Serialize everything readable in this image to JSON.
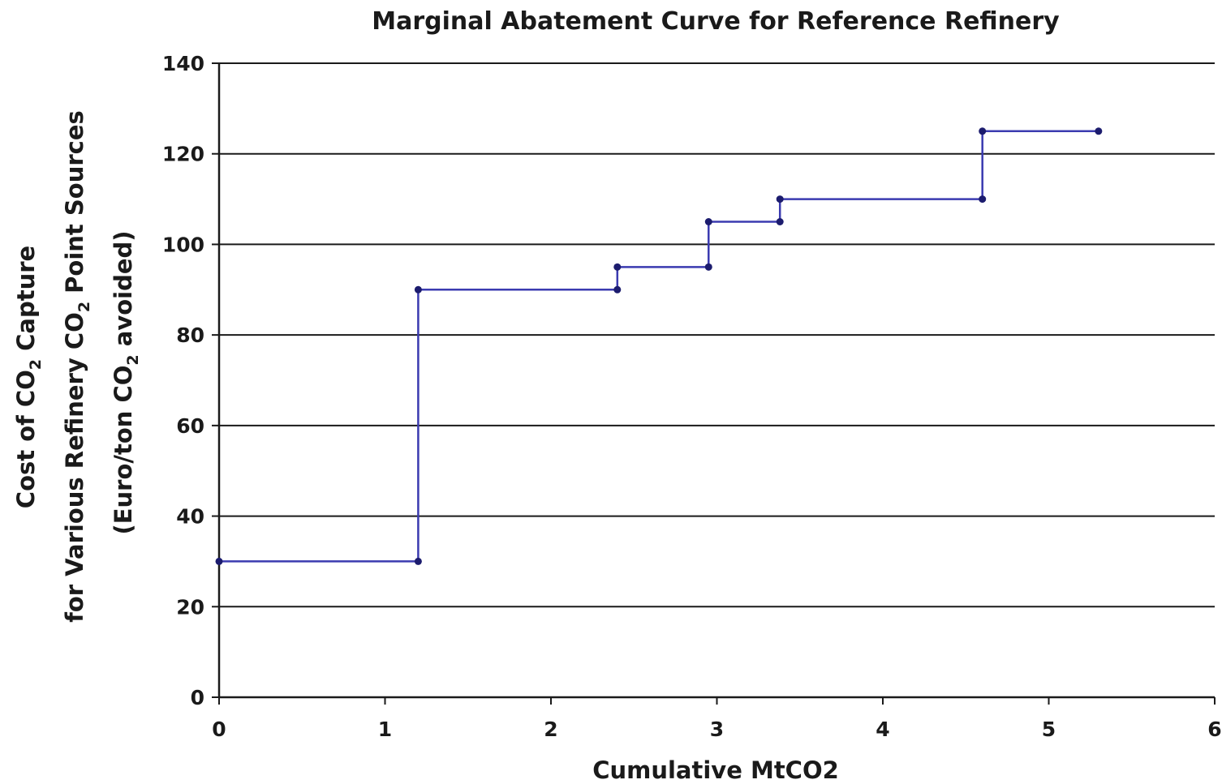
{
  "chart_data": {
    "type": "line",
    "title": "Marginal Abatement Curve for Reference Refinery",
    "xlabel": "Cumulative MtCO2",
    "ylabel": {
      "line1_a": "Cost of CO",
      "line1_sub": "2",
      "line1_b": " Capture",
      "line2_a": "for Various Refinery CO",
      "line2_sub": "2",
      "line2_b": " Point Sources",
      "line3_a": "(Euro/ton CO",
      "line3_sub": "2",
      "line3_b": " avoided)"
    },
    "xlim": [
      0,
      6
    ],
    "ylim": [
      0,
      140
    ],
    "x_ticks": [
      0,
      1,
      2,
      3,
      4,
      5,
      6
    ],
    "y_ticks": [
      0,
      20,
      40,
      60,
      80,
      100,
      120,
      140
    ],
    "grid": "horizontal",
    "legend": "none",
    "colors": {
      "series": "#3b3bb0",
      "marker": "#1c1c6e",
      "grid": "#1a1a1a"
    },
    "series": [
      {
        "x": [
          0,
          1.2,
          1.2,
          2.4,
          2.4,
          2.95,
          2.95,
          3.38,
          3.38,
          4.6,
          4.6,
          5.3
        ],
        "y": [
          30,
          30,
          90,
          90,
          95,
          95,
          105,
          105,
          110,
          110,
          125,
          125
        ]
      }
    ]
  }
}
